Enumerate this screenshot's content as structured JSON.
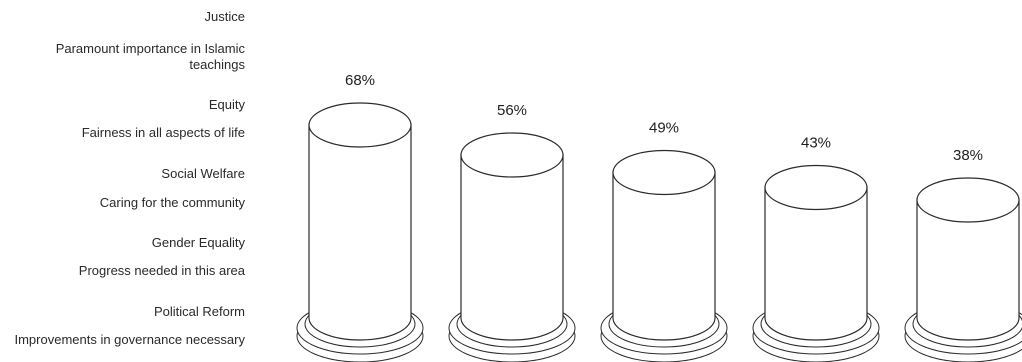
{
  "chart_data": {
    "type": "bar",
    "title": "",
    "xlabel": "",
    "ylabel": "",
    "ylim": [
      0,
      100
    ],
    "categories": [
      "Justice",
      "Equity",
      "Social Welfare",
      "Gender Equality",
      "Political Reform"
    ],
    "descriptions": [
      "Paramount importance in Islamic teachings",
      "Fairness in all aspects of life",
      "Caring for the community",
      "Progress needed in this area",
      "Improvements in governance necessary"
    ],
    "values": [
      68,
      56,
      49,
      43,
      38
    ],
    "value_labels": [
      "68%",
      "56%",
      "49%",
      "43%",
      "38%"
    ],
    "stroke_color": "#2b2b2b",
    "fill_color": "#ffffff"
  }
}
